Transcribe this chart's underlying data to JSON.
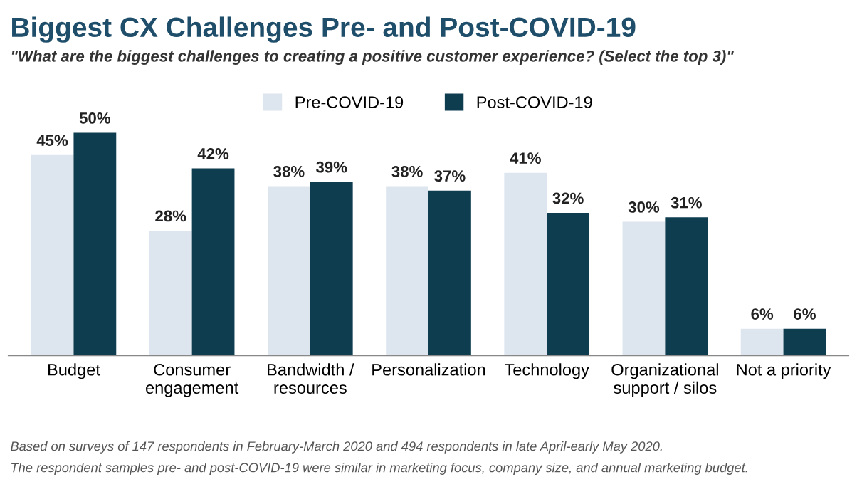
{
  "chart_data": {
    "type": "bar",
    "title": "Biggest CX Challenges Pre- and Post-COVID-19",
    "subtitle": "\"What are the biggest challenges to creating a positive customer experience? (Select the top 3)\"",
    "categories": [
      "Budget",
      "Consumer\nengagement",
      "Bandwidth /\nresources",
      "Personalization",
      "Technology",
      "Organizational\nsupport / silos",
      "Not a priority"
    ],
    "series": [
      {
        "name": "Pre-COVID-19",
        "color": "#dde6ee",
        "values": [
          45,
          28,
          38,
          38,
          41,
          30,
          6
        ],
        "value_labels": [
          "45%",
          "28%",
          "38%",
          "38%",
          "41%",
          "30%",
          "6%"
        ]
      },
      {
        "name": "Post-COVID-19",
        "color": "#0e3d50",
        "values": [
          50,
          42,
          39,
          37,
          32,
          31,
          6
        ],
        "value_labels": [
          "50%",
          "42%",
          "39%",
          "37%",
          "32%",
          "31%",
          "6%"
        ]
      }
    ],
    "legend": "top",
    "grid": false,
    "annotations": [
      "Based on surveys of 147 respondents in February-March 2020 and 494 respondents in late April-early May 2020.",
      "The respondent samples pre- and post-COVID-19 were similar in marketing focus, company size, and annual marketing budget."
    ]
  }
}
